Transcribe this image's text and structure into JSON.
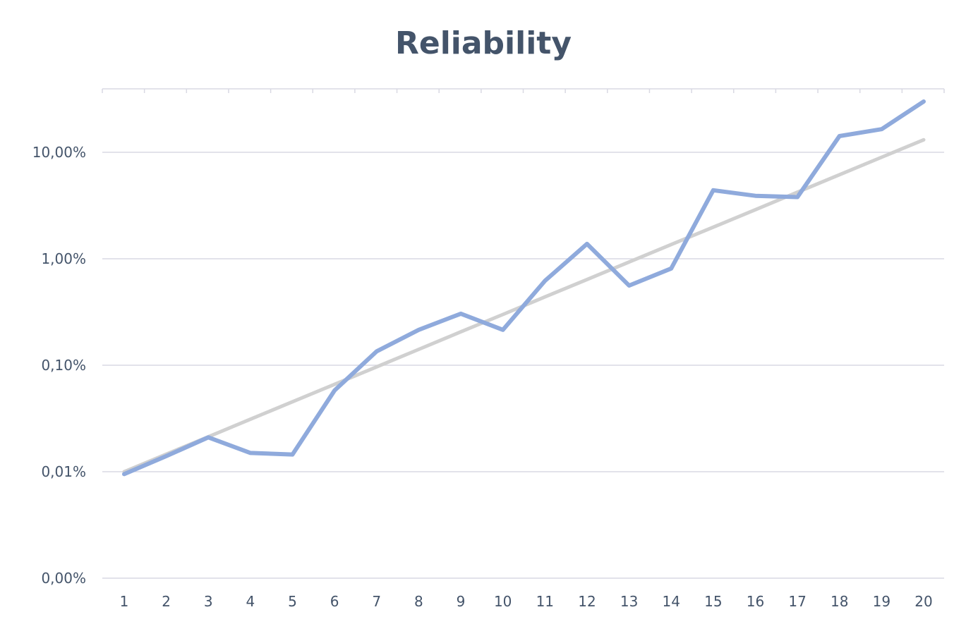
{
  "chart_data": {
    "type": "line",
    "title": "Reliability",
    "xlabel": "",
    "ylabel": "",
    "categories": [
      "1",
      "2",
      "3",
      "4",
      "5",
      "6",
      "7",
      "8",
      "9",
      "10",
      "11",
      "12",
      "13",
      "14",
      "15",
      "16",
      "17",
      "18",
      "19",
      "20"
    ],
    "y_scale": "log",
    "y_ticks": [
      {
        "value": 0.0001,
        "label": "0,01%"
      },
      {
        "value": 0.001,
        "label": "0,10%"
      },
      {
        "value": 0.01,
        "label": "1,00%"
      },
      {
        "value": 0.1,
        "label": "10,00%"
      }
    ],
    "y_bottom_label": "0,00%",
    "ylim": [
      1e-05,
      0.6
    ],
    "grid": true,
    "legend": "none",
    "series": [
      {
        "color": "#8faadc",
        "values": [
          9.5e-05,
          0.00014,
          0.00021,
          0.00015,
          0.000145,
          0.00058,
          0.00135,
          0.00215,
          0.00305,
          0.00215,
          0.0062,
          0.0138,
          0.0056,
          0.0081,
          0.044,
          0.039,
          0.038,
          0.142,
          0.165,
          0.3
        ]
      },
      {
        "color": "#d0d0d0",
        "values": [
          0.0001,
          0.000146,
          0.000213,
          0.000311,
          0.000454,
          0.000662,
          0.000966,
          0.00141,
          0.00206,
          0.003,
          0.00438,
          0.00639,
          0.00932,
          0.0136,
          0.0198,
          0.0289,
          0.0422,
          0.0616,
          0.0899,
          0.131
        ]
      }
    ]
  }
}
